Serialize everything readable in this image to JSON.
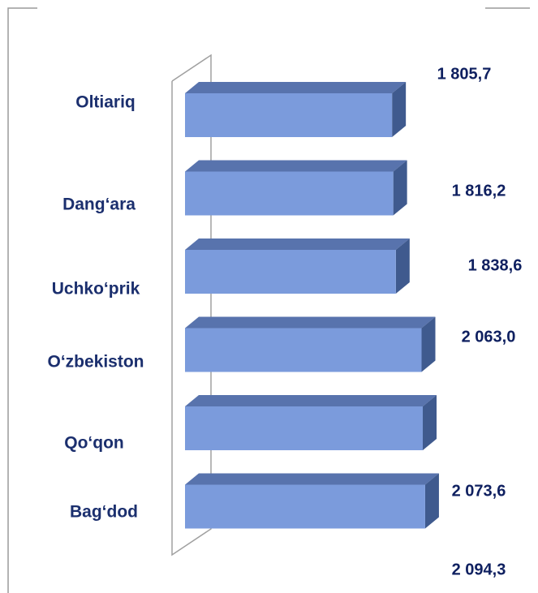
{
  "chart_data": {
    "type": "bar",
    "orientation": "horizontal",
    "categories": [
      "Oltiariq",
      "Dang‘ara",
      "Uchko‘prik",
      "O‘zbekiston",
      "Qo‘qon",
      "Bag‘dod"
    ],
    "values": [
      1805.7,
      1816.2,
      1838.6,
      2063.0,
      2073.6,
      2094.3
    ],
    "value_labels": [
      "1 805,7",
      "1 816,2",
      "1 838,6",
      "2 063,0",
      "2 073,6",
      "2 094,3"
    ],
    "color": "#7b9bdc",
    "xlim": [
      0,
      2300
    ]
  }
}
